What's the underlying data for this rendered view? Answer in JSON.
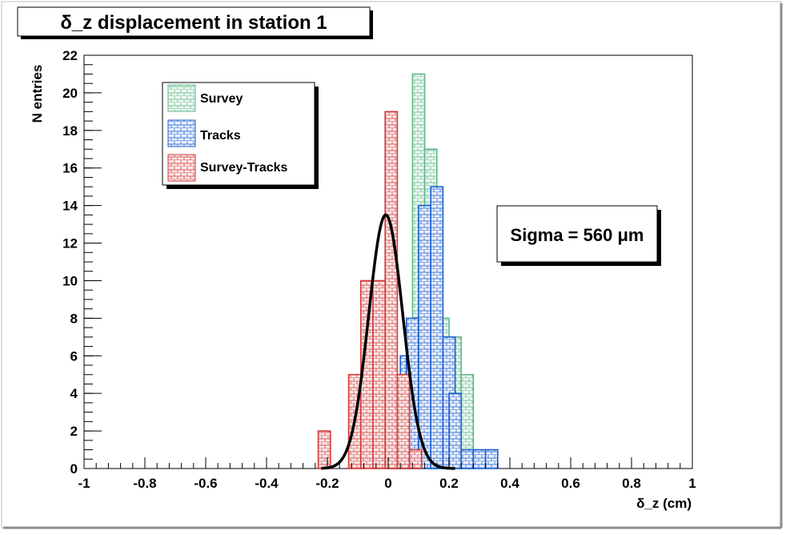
{
  "chart_data": {
    "type": "histogram",
    "title": "δ_z displacement in station 1",
    "xlabel": "δ_z (cm)",
    "ylabel": "N entries",
    "xlim": [
      -1,
      1
    ],
    "ylim": [
      0,
      22
    ],
    "x_ticks": [
      "-1",
      "-0.8",
      "-0.6",
      "-0.4",
      "-0.2",
      "0",
      "0.2",
      "0.4",
      "0.6",
      "0.8",
      "1"
    ],
    "x_tick_values": [
      -1,
      -0.8,
      -0.6,
      -0.4,
      -0.2,
      0,
      0.2,
      0.4,
      0.6,
      0.8,
      1
    ],
    "y_ticks": [
      "0",
      "2",
      "4",
      "6",
      "8",
      "10",
      "12",
      "14",
      "16",
      "18",
      "20",
      "22"
    ],
    "y_tick_values": [
      0,
      2,
      4,
      6,
      8,
      10,
      12,
      14,
      16,
      18,
      20,
      22
    ],
    "bin_width": 0.04,
    "series": [
      {
        "name": "Survey",
        "color": "#5fb98a",
        "bins": [
          {
            "x": -0.04,
            "y": 0
          },
          {
            "x": 0.0,
            "y": 1
          },
          {
            "x": 0.04,
            "y": 1
          },
          {
            "x": 0.08,
            "y": 21
          },
          {
            "x": 0.12,
            "y": 17
          },
          {
            "x": 0.16,
            "y": 8
          },
          {
            "x": 0.2,
            "y": 7
          },
          {
            "x": 0.24,
            "y": 5
          }
        ]
      },
      {
        "name": "Tracks",
        "color": "#1d5fd1",
        "bins": [
          {
            "x": 0.0,
            "y": 1
          },
          {
            "x": 0.02,
            "y": 2
          },
          {
            "x": 0.04,
            "y": 6
          },
          {
            "x": 0.06,
            "y": 8
          },
          {
            "x": 0.1,
            "y": 14
          },
          {
            "x": 0.14,
            "y": 15
          },
          {
            "x": 0.18,
            "y": 7
          },
          {
            "x": 0.2,
            "y": 4
          },
          {
            "x": 0.24,
            "y": 1
          },
          {
            "x": 0.28,
            "y": 1
          },
          {
            "x": 0.32,
            "y": 1
          }
        ]
      },
      {
        "name": "Survey-Tracks",
        "color": "#d33a3a",
        "bins": [
          {
            "x": -0.23,
            "y": 2
          },
          {
            "x": -0.13,
            "y": 5
          },
          {
            "x": -0.09,
            "y": 10
          },
          {
            "x": -0.05,
            "y": 10
          },
          {
            "x": -0.01,
            "y": 19
          },
          {
            "x": 0.03,
            "y": 5
          },
          {
            "x": 0.07,
            "y": 1
          }
        ]
      }
    ],
    "fit": {
      "type": "gaussian",
      "mean": -0.008,
      "sigma": 0.056,
      "amplitude": 13.5,
      "color": "#000000"
    },
    "annotation": "Sigma = 560 μm",
    "legend_position": "top-left",
    "grid": false
  }
}
